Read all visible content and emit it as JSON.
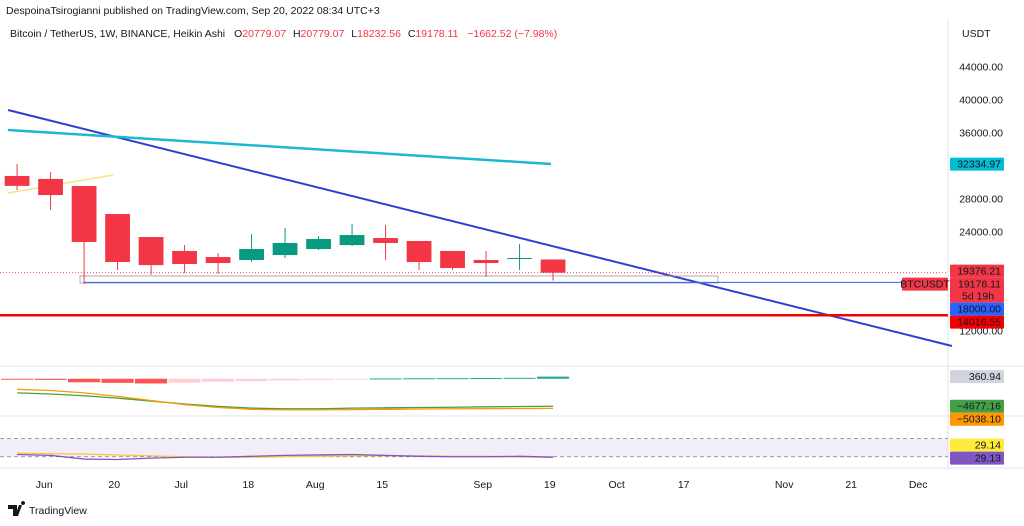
{
  "header": {
    "publisher": "DespoinaTsirogianni published on TradingView.com, Sep 20, 2022 08:34 UTC+3"
  },
  "chart_data": [
    {
      "type": "candlestick",
      "title": "Bitcoin / TetherUS, 1W, BINANCE, Heikin Ashi",
      "legend_letters": [
        "O",
        "H",
        "L",
        "C"
      ],
      "change_label": "−1662.52 (−7.98%)",
      "currency": "USDT",
      "x": [
        0,
        1,
        2,
        3,
        4,
        5,
        6,
        7,
        8,
        9,
        10,
        11,
        12,
        13,
        14,
        15,
        16
      ],
      "open": [
        30900,
        30540,
        29680,
        26290,
        23500,
        21810,
        21080,
        20720,
        21320,
        22050,
        22530,
        23380,
        23020,
        21810,
        20720,
        20840,
        20779.07
      ],
      "high": [
        32350,
        31380,
        29680,
        26290,
        23500,
        22530,
        21560,
        23870,
        24600,
        23620,
        25080,
        24960,
        23020,
        21810,
        21810,
        22650,
        20779.07
      ],
      "low": [
        29200,
        26780,
        17800,
        19500,
        18900,
        19140,
        19020,
        20470,
        20960,
        21930,
        22410,
        20720,
        19500,
        19500,
        18660,
        19500,
        18232.56
      ],
      "close": [
        29700,
        28590,
        22900,
        20470,
        20100,
        20230,
        20350,
        22050,
        22780,
        23260,
        23740,
        22780,
        20470,
        19750,
        20350,
        20960,
        19178.11
      ],
      "up_color": "#089981",
      "down_color": "#f23645",
      "xlim": [
        -0.51,
        27.79
      ],
      "xticks": [
        {
          "value": 0.81,
          "label": "Jun"
        },
        {
          "value": 2.9,
          "label": "20"
        },
        {
          "value": 4.9,
          "label": "Jul"
        },
        {
          "value": 6.9,
          "label": "18"
        },
        {
          "value": 8.9,
          "label": "Aug"
        },
        {
          "value": 10.9,
          "label": "15"
        },
        {
          "value": 13.9,
          "label": "Sep"
        },
        {
          "value": 15.9,
          "label": "19"
        },
        {
          "value": 17.9,
          "label": "Oct"
        },
        {
          "value": 19.9,
          "label": "17"
        },
        {
          "value": 22.9,
          "label": "Nov"
        },
        {
          "value": 24.9,
          "label": "21"
        },
        {
          "value": 26.9,
          "label": "Dec"
        }
      ],
      "ylim": [
        8600,
        49800
      ],
      "yticks": [
        {
          "value": 44000,
          "label": "44000.00"
        },
        {
          "value": 40000,
          "label": "40000.00"
        },
        {
          "value": 36000,
          "label": "36000.00"
        },
        {
          "value": 28000,
          "label": "28000.00"
        },
        {
          "value": 24000,
          "label": "24000.00"
        },
        {
          "value": 12000,
          "label": "12000.00"
        }
      ],
      "price_badges": [
        {
          "value": 32334.97,
          "label": "32334.97",
          "color": "#00bcd4"
        },
        {
          "value": 19376.21,
          "label": "19376.21",
          "color": "#f23645"
        },
        {
          "value": 19178.11,
          "label": "19178.11",
          "color": "#f23645",
          "symbol": "BTCUSDT",
          "countdown": "5d 19h"
        }
      ],
      "price_lines": [
        {
          "value": 18000,
          "label": "18000.00",
          "color": "#2962ff"
        },
        {
          "value": 14016.55,
          "label": "14016.55",
          "color": "#f50000"
        }
      ]
    },
    {
      "type": "macd",
      "x": [
        0,
        1,
        2,
        3,
        4,
        5,
        6,
        7,
        8,
        9,
        10,
        11,
        12,
        13,
        14,
        15,
        16
      ],
      "histogram": [
        -150,
        -200,
        -600,
        -700,
        -800,
        -650,
        -500,
        -400,
        -300,
        -200,
        -20,
        50,
        80,
        100,
        120,
        150,
        360.94
      ],
      "histogram_colors": {
        "up_strong": "#26a69a",
        "up_weak": "#b2dfdb",
        "down_strong": "#ff5252",
        "down_weak": "#ffcdd2"
      },
      "series": [
        {
          "color": "#43a047",
          "values": [
            -2400,
            -2600,
            -2900,
            -3300,
            -3800,
            -4300,
            -4700,
            -5000,
            -5100,
            -5100,
            -5000,
            -4950,
            -4900,
            -4850,
            -4780,
            -4720,
            -4677.16
          ]
        },
        {
          "color": "#ff9800",
          "values": [
            -1800,
            -2000,
            -2400,
            -3000,
            -3700,
            -4400,
            -4900,
            -5200,
            -5300,
            -5300,
            -5250,
            -5200,
            -5150,
            -5100,
            -5080,
            -5060,
            -5038.1
          ]
        }
      ],
      "ylim": [
        -6000,
        2000
      ],
      "badges": [
        {
          "value": 360.94,
          "label": "360.94",
          "color": "#d1d4dc",
          "text_color": "#131722"
        },
        {
          "value": -4677.16,
          "label": "−4677.16",
          "color": "#43a047",
          "text_color": "#ffffff"
        },
        {
          "value": -5038.1,
          "label": "−5038.10",
          "color": "#ff9800",
          "text_color": "#ffffff"
        }
      ]
    },
    {
      "type": "rsi",
      "x": [
        0,
        1,
        2,
        3,
        4,
        5,
        6,
        7,
        8,
        9,
        10,
        11,
        12,
        13,
        14,
        15,
        16
      ],
      "series": [
        {
          "color": "#f7c948",
          "values": [
            38,
            37,
            36,
            34,
            32,
            30,
            29,
            29,
            30,
            31,
            32,
            32,
            32,
            31,
            31,
            30,
            29.14
          ]
        },
        {
          "color": "#7e57c2",
          "values": [
            35,
            33,
            25,
            24,
            27,
            29,
            29,
            31,
            33,
            34,
            35,
            33,
            31,
            30,
            30,
            31,
            29.13
          ]
        }
      ],
      "bands": [
        30,
        70
      ],
      "ylim": [
        7.5,
        117.5
      ],
      "badges": [
        {
          "value": 29.14,
          "label": "29.14",
          "color": "#ffeb3b",
          "text_color": "#131722"
        },
        {
          "value": 29.13,
          "label": "29.13",
          "color": "#7e57c2",
          "text_color": "#ffffff"
        }
      ]
    }
  ],
  "footer": {
    "brand": "TradingView"
  }
}
